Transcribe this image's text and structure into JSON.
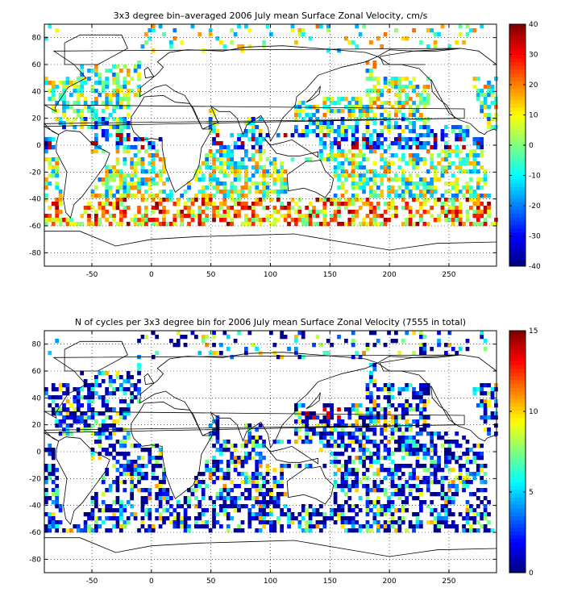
{
  "chart_data": [
    {
      "type": "heatmap",
      "title": "3x3 degree bin–averaged 2006 July mean Surface Zonal Velocity, cm/s",
      "xlabel": "",
      "ylabel": "",
      "xlim": [
        -90,
        290
      ],
      "ylim": [
        -90,
        90
      ],
      "x_ticks": [
        -50,
        0,
        50,
        100,
        150,
        200,
        250
      ],
      "y_ticks": [
        80,
        60,
        40,
        20,
        0,
        -20,
        -40,
        -60,
        -80
      ],
      "grid": true,
      "grid_style": "dotted",
      "bin_size_deg": 3,
      "colormap": "jet",
      "colorbar": {
        "min": -40,
        "max": 40,
        "ticks": [
          40,
          30,
          20,
          10,
          0,
          -10,
          -20,
          -30,
          -40
        ],
        "placement": "right"
      }
    },
    {
      "type": "heatmap",
      "title": "N of cycles per 3x3 degree bin for 2006 July mean Surface Zonal Velocity (7555 in total)",
      "xlabel": "",
      "ylabel": "",
      "xlim": [
        -90,
        290
      ],
      "ylim": [
        -90,
        90
      ],
      "x_ticks": [
        -50,
        0,
        50,
        100,
        150,
        200,
        250
      ],
      "y_ticks": [
        80,
        60,
        40,
        20,
        0,
        -20,
        -40,
        -60,
        -80
      ],
      "grid": true,
      "grid_style": "dotted",
      "bin_size_deg": 3,
      "colormap": "jet",
      "colorbar": {
        "min": 0,
        "max": 15,
        "ticks": [
          15,
          10,
          5,
          0
        ],
        "placement": "right"
      }
    }
  ]
}
